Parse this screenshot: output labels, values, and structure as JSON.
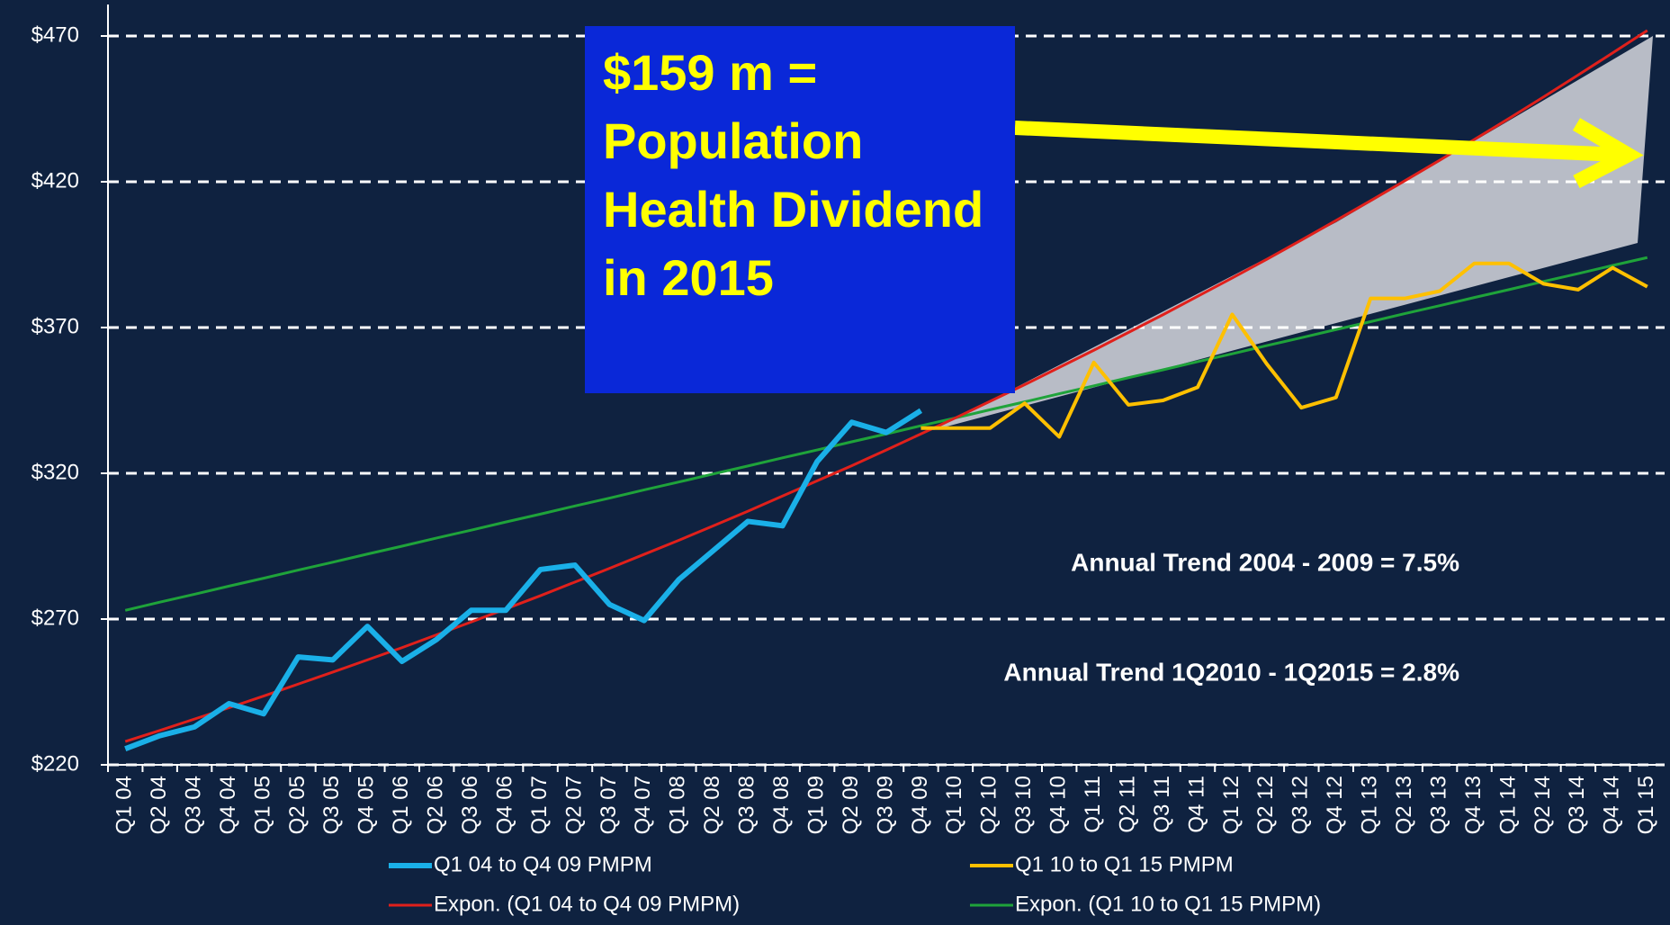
{
  "chart_data": {
    "type": "line",
    "categories": [
      "Q1 04",
      "Q2 04",
      "Q3 04",
      "Q4 04",
      "Q1 05",
      "Q2 05",
      "Q3 05",
      "Q4 05",
      "Q1 06",
      "Q2 06",
      "Q3 06",
      "Q4 06",
      "Q1 07",
      "Q2 07",
      "Q3 07",
      "Q4 07",
      "Q1 08",
      "Q2 08",
      "Q3 08",
      "Q4 08",
      "Q1 09",
      "Q2 09",
      "Q3 09",
      "Q4 09",
      "Q1 10",
      "Q2 10",
      "Q3 10",
      "Q4 10",
      "Q1 11",
      "Q2 11",
      "Q3 11",
      "Q4 11",
      "Q1 12",
      "Q2 12",
      "Q3 12",
      "Q4 12",
      "Q1 13",
      "Q2 13",
      "Q3 13",
      "Q4 13",
      "Q1 14",
      "Q2 14",
      "Q3 14",
      "Q4 14",
      "Q1 15"
    ],
    "series": [
      {
        "name": "Q1 04 to Q4 09 PMPM",
        "color": "#1ab0e8",
        "values": [
          225.5,
          230,
          233,
          241,
          237.5,
          257,
          256,
          267.5,
          255.5,
          263,
          273,
          273,
          287,
          288.5,
          275,
          269.5,
          283.5,
          293.5,
          303.5,
          302,
          324,
          337.5,
          334,
          341.5,
          null,
          null,
          null,
          null,
          null,
          null,
          null,
          null,
          null,
          null,
          null,
          null,
          null,
          null,
          null,
          null,
          null,
          null,
          null,
          null,
          null
        ]
      },
      {
        "name": "Q1 10 to Q1 15 PMPM",
        "color": "#ffc000",
        "values": [
          null,
          null,
          null,
          null,
          null,
          null,
          null,
          null,
          null,
          null,
          null,
          null,
          null,
          null,
          null,
          null,
          null,
          null,
          null,
          null,
          null,
          null,
          null,
          335.5,
          335.5,
          335.5,
          344,
          332.5,
          358,
          343.5,
          345,
          349.5,
          374.5,
          357.5,
          342.5,
          346,
          380,
          380,
          382.5,
          392,
          392,
          385,
          383,
          390.5,
          384
        ]
      },
      {
        "name": "Expon. (Q1 04 to Q4 09 PMPM)",
        "color": "#e0201b",
        "values": [
          228,
          231.8,
          235.7,
          239.6,
          243.6,
          247.7,
          251.8,
          256,
          260.2,
          264.6,
          269,
          273.5,
          278,
          282.7,
          287.4,
          292.2,
          297,
          302,
          307,
          312.2,
          317.4,
          322.6,
          328,
          333.5,
          339,
          344.7,
          350.4,
          356.3,
          362.2,
          368.3,
          374.4,
          380.7,
          387,
          393.4,
          400,
          406.7,
          413.5,
          420.4,
          427.4,
          434.5,
          441.7,
          449.1,
          456.6,
          464.2,
          471.9
        ]
      },
      {
        "name": "Expon. (Q1 10 to Q1 15 PMPM)",
        "color": "#1fa33a",
        "values": [
          273,
          275.8,
          278.5,
          281.3,
          284,
          286.8,
          289.5,
          292.3,
          295,
          297.8,
          300.5,
          303.3,
          306,
          308.8,
          311.5,
          314.3,
          317,
          319.8,
          322.5,
          325.3,
          328,
          330.8,
          333.5,
          336.3,
          339,
          341.8,
          344.5,
          347.3,
          350,
          352.8,
          355.5,
          358.3,
          361,
          363.8,
          366.5,
          369.3,
          372,
          374.8,
          377.5,
          380.3,
          383,
          385.8,
          388.5,
          391.3,
          394
        ]
      }
    ],
    "ylim": [
      220,
      470
    ],
    "yticks": [
      {
        "value": 220,
        "label": "$220"
      },
      {
        "value": 270,
        "label": "$270"
      },
      {
        "value": 320,
        "label": "$320"
      },
      {
        "value": 370,
        "label": "$370"
      },
      {
        "value": 420,
        "label": "$420"
      },
      {
        "value": 470,
        "label": "$470"
      }
    ],
    "grid": true,
    "annotations": [
      "$159 m = Population Health Dividend in 2015",
      "Annual Trend 2004 - 2009 = 7.5%",
      "Annual Trend 1Q2010 - 1Q2015 = 2.8%"
    ]
  }
}
